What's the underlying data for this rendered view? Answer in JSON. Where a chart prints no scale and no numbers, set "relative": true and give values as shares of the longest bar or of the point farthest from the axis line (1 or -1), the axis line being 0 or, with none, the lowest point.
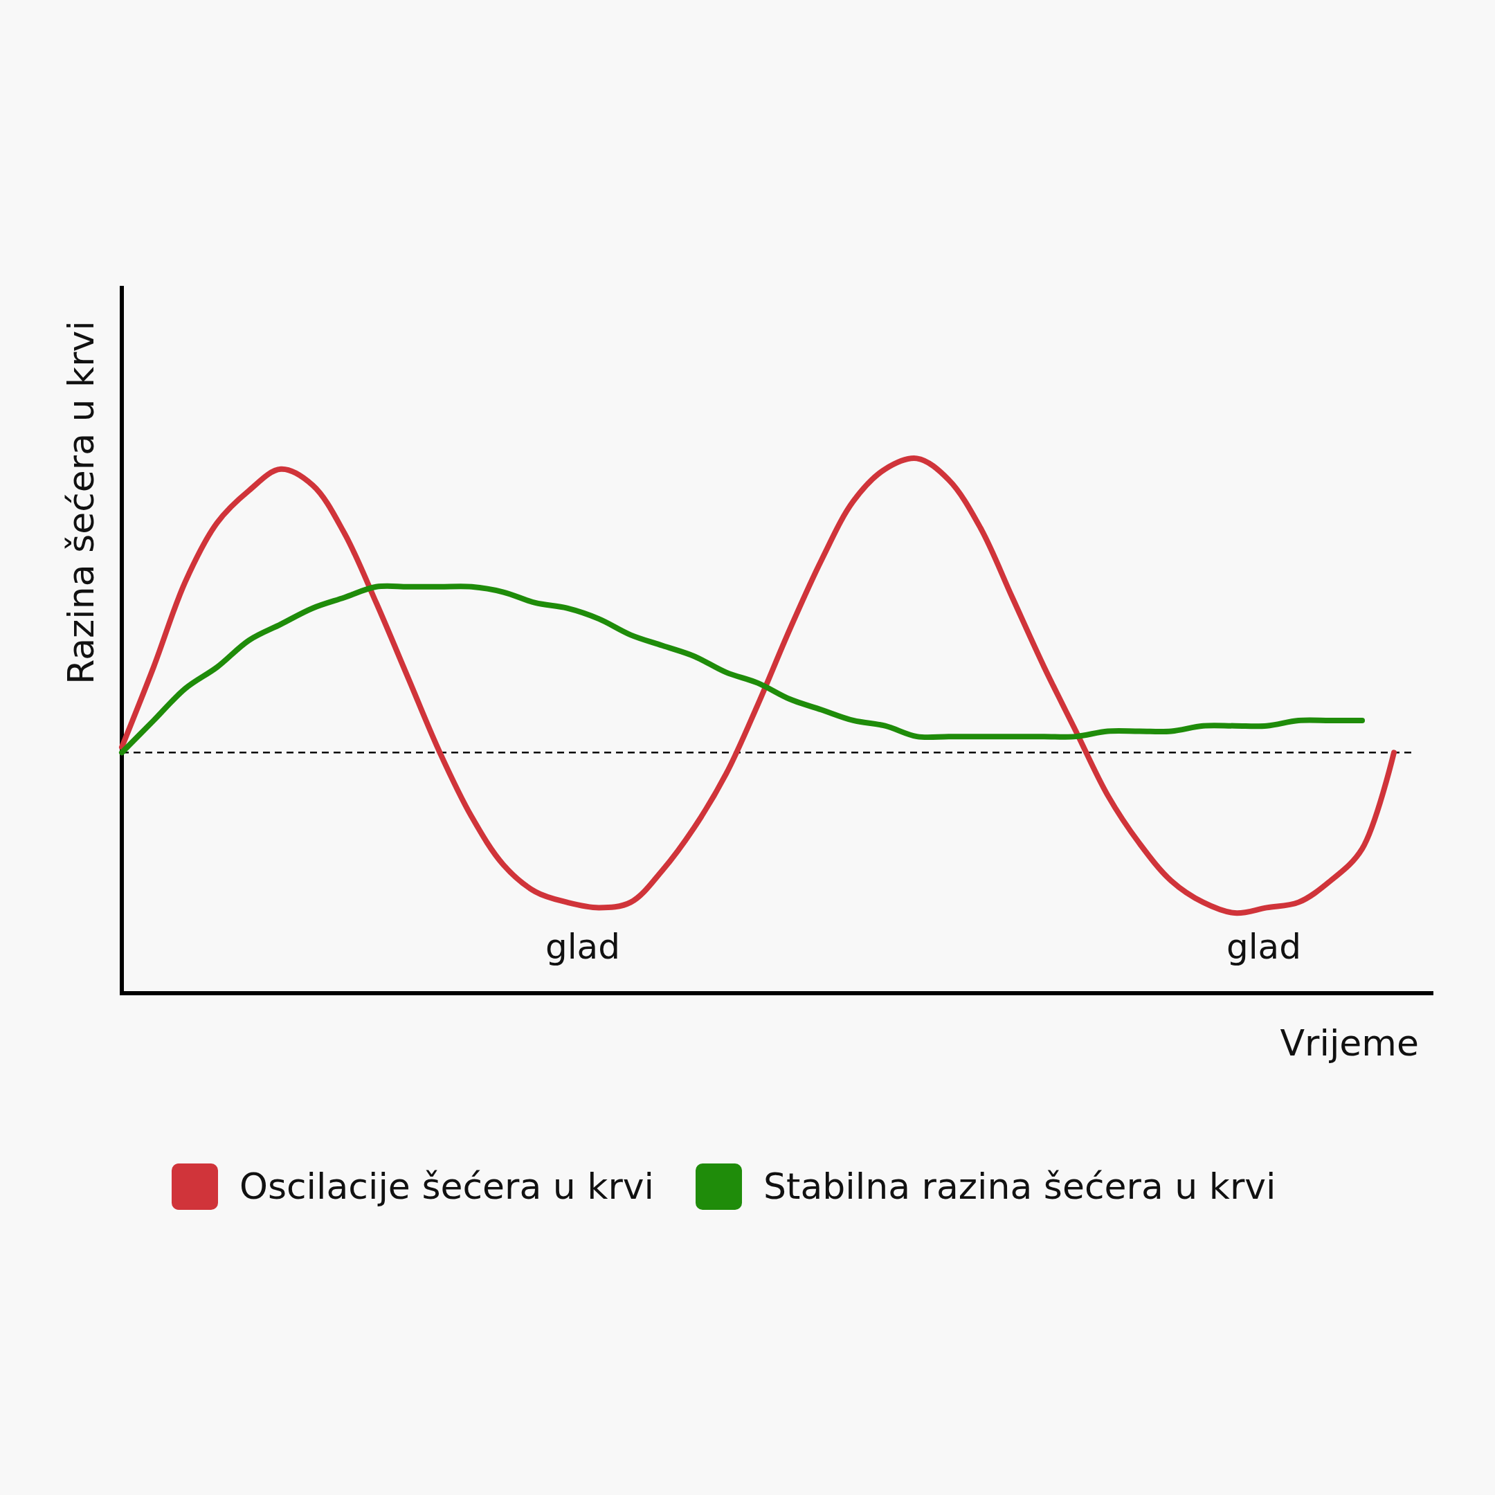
{
  "chart_data": {
    "type": "line",
    "relative": true,
    "xlabel": "Vrijeme",
    "ylabel": "Razina šećera u krvi",
    "categories": [
      null,
      null,
      null,
      null,
      null,
      null,
      null,
      null,
      null,
      null,
      null,
      null,
      null,
      null,
      null,
      null,
      null,
      null,
      null,
      null,
      null,
      null,
      null,
      null,
      null,
      null,
      null,
      null,
      null,
      null,
      null,
      null,
      null,
      null,
      null,
      null,
      null,
      null,
      null,
      null,
      null
    ],
    "series": [
      {
        "name": "Oscilacije šećera u krvi",
        "color": "#d0343a",
        "values": [
          0.46,
          0.61,
          0.77,
          0.88,
          0.94,
          0.98,
          0.95,
          0.86,
          0.73,
          0.59,
          0.45,
          0.33,
          0.24,
          0.19,
          0.17,
          0.16,
          0.17,
          0.23,
          0.31,
          0.41,
          0.54,
          0.68,
          0.81,
          0.92,
          0.98,
          1.0,
          0.96,
          0.87,
          0.74,
          0.61,
          0.49,
          0.37,
          0.28,
          0.21,
          0.17,
          0.15,
          0.16,
          0.17,
          0.21,
          0.27,
          0.45
        ]
      },
      {
        "name": "Stabilna razina šećera u krvi",
        "color": "#1f8c0a",
        "values": [
          0.45,
          0.51,
          0.57,
          0.61,
          0.66,
          0.69,
          0.72,
          0.74,
          0.76,
          0.76,
          0.76,
          0.76,
          0.75,
          0.73,
          0.72,
          0.7,
          0.67,
          0.65,
          0.63,
          0.6,
          0.58,
          0.55,
          0.53,
          0.51,
          0.5,
          0.48,
          0.48,
          0.48,
          0.48,
          0.48,
          0.48,
          0.49,
          0.49,
          0.49,
          0.5,
          0.5,
          0.5,
          0.51,
          0.51,
          0.51,
          null
        ]
      }
    ],
    "ref_lines": [
      {
        "axis": "y",
        "value": 0.45,
        "color": "#000000",
        "line_style": "dashed"
      }
    ],
    "annotations": [
      "glad",
      "glad"
    ],
    "legend": "bottom",
    "marker": "none",
    "line_style": "solid"
  }
}
